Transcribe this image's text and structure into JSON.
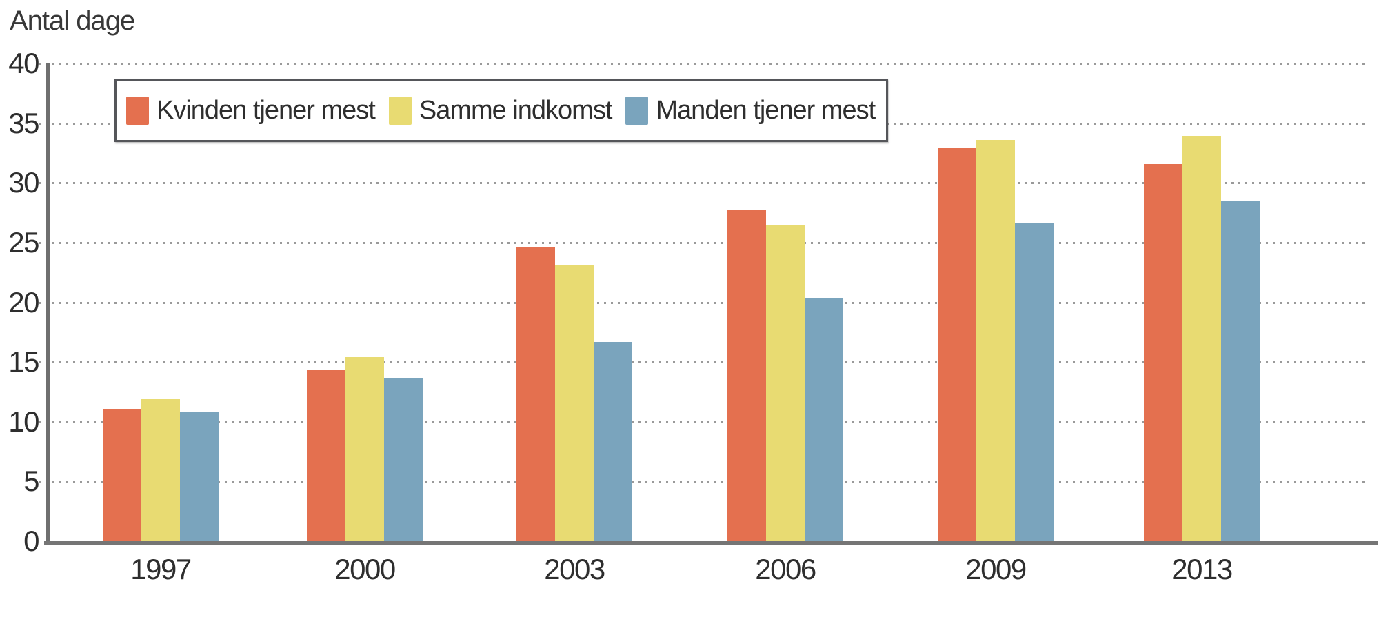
{
  "page": {
    "title": "Antal dage"
  },
  "chart_data": {
    "type": "bar",
    "title": "Antal dage",
    "ylabel": "Antal dage",
    "xlabel": "",
    "categories": [
      "1997",
      "2000",
      "2003",
      "2006",
      "2009",
      "2013"
    ],
    "series": [
      {
        "name": "Kvinden tjener mest",
        "color": "#E4704F",
        "values": [
          11.1,
          14.3,
          24.6,
          27.7,
          32.9,
          31.6
        ]
      },
      {
        "name": "Samme indkomst",
        "color": "#E8DB72",
        "values": [
          11.9,
          15.4,
          23.1,
          26.5,
          33.6,
          33.9
        ]
      },
      {
        "name": "Manden tjener mest",
        "color": "#7AA4BD",
        "values": [
          10.8,
          13.6,
          16.7,
          20.4,
          26.6,
          28.5
        ]
      }
    ],
    "ylim": [
      0,
      40
    ],
    "yticks": [
      0,
      5,
      10,
      15,
      20,
      25,
      30,
      35,
      40
    ],
    "grid": "horizontal-dotted",
    "legend_position": "top-inside",
    "bar_gap_within_group": 0
  },
  "colors": {
    "background": "#ffffff",
    "axis": "#6f6f6f",
    "baseline": "#757575",
    "gridline": "#9a9a9a",
    "text": "#2e2e2e",
    "legend_border": "#55565a"
  }
}
